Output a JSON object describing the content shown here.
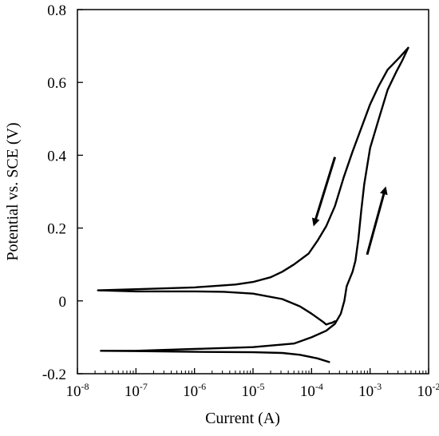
{
  "chart_data": {
    "type": "line",
    "title": "",
    "xlabel": "Current (A)",
    "ylabel": "Potential vs. SCE (V)",
    "x_scale": "log",
    "xlim": [
      1e-08,
      0.01
    ],
    "ylim": [
      -0.2,
      0.8
    ],
    "x_ticks": [
      {
        "base": "10",
        "exp": "-8",
        "value": 1e-08
      },
      {
        "base": "10",
        "exp": "-7",
        "value": 1e-07
      },
      {
        "base": "10",
        "exp": "-6",
        "value": 1e-06
      },
      {
        "base": "10",
        "exp": "-5",
        "value": 1e-05
      },
      {
        "base": "10",
        "exp": "-4",
        "value": 0.0001
      },
      {
        "base": "10",
        "exp": "-3",
        "value": 0.001
      },
      {
        "base": "10",
        "exp": "-2",
        "value": 0.01
      }
    ],
    "y_ticks": [
      {
        "label": "0.8",
        "value": 0.8
      },
      {
        "label": "0.6",
        "value": 0.6
      },
      {
        "label": "0.4",
        "value": 0.4
      },
      {
        "label": "0.2",
        "value": 0.2
      },
      {
        "label": "0",
        "value": 0
      },
      {
        "label": "-0.2",
        "value": -0.2
      }
    ],
    "grid": false,
    "legend": "none",
    "series": [
      {
        "points": [
          [
            0.0002,
            -0.168
          ],
          [
            0.000126,
            -0.158
          ],
          [
            6.31e-05,
            -0.148
          ],
          [
            3.16e-05,
            -0.143
          ],
          [
            1e-05,
            -0.141
          ],
          [
            1e-06,
            -0.14
          ],
          [
            1e-07,
            -0.138
          ],
          [
            2.51e-08,
            -0.137
          ],
          [
            1e-07,
            -0.137
          ],
          [
            1e-06,
            -0.132
          ],
          [
            1e-05,
            -0.127
          ],
          [
            5.01e-05,
            -0.117
          ],
          [
            0.0001,
            -0.1
          ],
          [
            0.000178,
            -0.082
          ],
          [
            0.000251,
            -0.063
          ],
          [
            0.000316,
            -0.035
          ],
          [
            0.000363,
            0.0
          ],
          [
            0.000398,
            0.04
          ],
          [
            0.000447,
            0.06
          ],
          [
            0.000501,
            0.08
          ],
          [
            0.000562,
            0.11
          ],
          [
            0.000631,
            0.17
          ],
          [
            0.000708,
            0.25
          ],
          [
            0.000794,
            0.32
          ],
          [
            0.000891,
            0.37
          ],
          [
            0.001,
            0.42
          ],
          [
            0.00141,
            0.5
          ],
          [
            0.002,
            0.58
          ],
          [
            0.00282,
            0.63
          ],
          [
            0.00355,
            0.66
          ],
          [
            0.00447,
            0.695
          ]
        ]
      },
      {
        "points": [
          [
            0.00447,
            0.695
          ],
          [
            0.00316,
            0.668
          ],
          [
            0.002,
            0.635
          ],
          [
            0.0014,
            0.59
          ],
          [
            0.001,
            0.54
          ],
          [
            0.000708,
            0.475
          ],
          [
            0.000501,
            0.41
          ],
          [
            0.000355,
            0.34
          ],
          [
            0.000251,
            0.26
          ],
          [
            0.000178,
            0.205
          ],
          [
            0.000126,
            0.165
          ],
          [
            8.91e-05,
            0.13
          ],
          [
            5.01e-05,
            0.1
          ],
          [
            3.16e-05,
            0.08
          ],
          [
            2e-05,
            0.065
          ],
          [
            1e-05,
            0.052
          ],
          [
            5.01e-06,
            0.045
          ],
          [
            1e-06,
            0.037
          ],
          [
            1e-07,
            0.032
          ],
          [
            2.24e-08,
            0.029
          ],
          [
            1e-07,
            0.026
          ],
          [
            1e-06,
            0.026
          ],
          [
            3.16e-06,
            0.025
          ],
          [
            1e-05,
            0.02
          ],
          [
            3.16e-05,
            0.005
          ],
          [
            6.31e-05,
            -0.015
          ],
          [
            0.0001,
            -0.035
          ],
          [
            0.000158,
            -0.058
          ],
          [
            0.000178,
            -0.065
          ],
          [
            0.0002,
            -0.062
          ],
          [
            0.000224,
            -0.06
          ],
          [
            0.000251,
            -0.056
          ]
        ]
      }
    ],
    "annotations": [
      {
        "type": "arrow",
        "from": [
          0.000251,
          0.395
        ],
        "to": [
          0.000112,
          0.213
        ],
        "direction": "down-left"
      },
      {
        "type": "arrow",
        "from": [
          0.000891,
          0.127
        ],
        "to": [
          0.0018,
          0.306
        ],
        "direction": "up-right"
      }
    ]
  }
}
